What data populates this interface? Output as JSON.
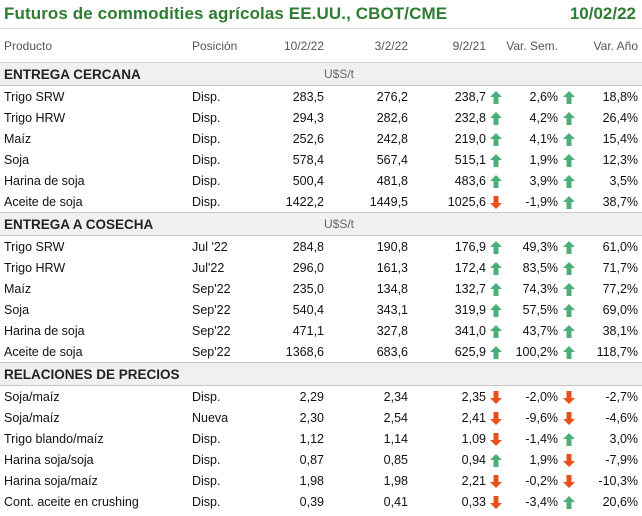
{
  "title": "Futuros de commodities agrícolas EE.UU., CBOT/CME",
  "date": "10/02/22",
  "colors": {
    "accent": "#2e7d32",
    "up": "#4caf7a",
    "down": "#e8511d"
  },
  "headers": [
    "Producto",
    "Posición",
    "10/2/22",
    "3/2/22",
    "9/2/21",
    "Var. Sem.",
    "Var. Año"
  ],
  "sections": [
    {
      "title": "ENTREGA CERCANA",
      "unit": "U$S/t",
      "rows": [
        {
          "producto": "Trigo SRW",
          "posicion": "Disp.",
          "v1": "283,5",
          "v2": "276,2",
          "v3": "238,7",
          "sem_dir": "up",
          "sem": "2,6%",
          "anio_dir": "up",
          "anio": "18,8%"
        },
        {
          "producto": "Trigo HRW",
          "posicion": "Disp.",
          "v1": "294,3",
          "v2": "282,6",
          "v3": "232,8",
          "sem_dir": "up",
          "sem": "4,2%",
          "anio_dir": "up",
          "anio": "26,4%"
        },
        {
          "producto": "Maíz",
          "posicion": "Disp.",
          "v1": "252,6",
          "v2": "242,8",
          "v3": "219,0",
          "sem_dir": "up",
          "sem": "4,1%",
          "anio_dir": "up",
          "anio": "15,4%"
        },
        {
          "producto": "Soja",
          "posicion": "Disp.",
          "v1": "578,4",
          "v2": "567,4",
          "v3": "515,1",
          "sem_dir": "up",
          "sem": "1,9%",
          "anio_dir": "up",
          "anio": "12,3%"
        },
        {
          "producto": "Harina de soja",
          "posicion": "Disp.",
          "v1": "500,4",
          "v2": "481,8",
          "v3": "483,6",
          "sem_dir": "up",
          "sem": "3,9%",
          "anio_dir": "up",
          "anio": "3,5%"
        },
        {
          "producto": "Aceite de soja",
          "posicion": "Disp.",
          "v1": "1422,2",
          "v2": "1449,5",
          "v3": "1025,6",
          "sem_dir": "down",
          "sem": "-1,9%",
          "anio_dir": "up",
          "anio": "38,7%"
        }
      ]
    },
    {
      "title": "ENTREGA A COSECHA",
      "unit": "U$S/t",
      "rows": [
        {
          "producto": "Trigo SRW",
          "posicion": "Jul '22",
          "v1": "284,8",
          "v2": "190,8",
          "v3": "176,9",
          "sem_dir": "up",
          "sem": "49,3%",
          "anio_dir": "up",
          "anio": "61,0%"
        },
        {
          "producto": "Trigo HRW",
          "posicion": "Jul'22",
          "v1": "296,0",
          "v2": "161,3",
          "v3": "172,4",
          "sem_dir": "up",
          "sem": "83,5%",
          "anio_dir": "up",
          "anio": "71,7%"
        },
        {
          "producto": "Maíz",
          "posicion": "Sep'22",
          "v1": "235,0",
          "v2": "134,8",
          "v3": "132,7",
          "sem_dir": "up",
          "sem": "74,3%",
          "anio_dir": "up",
          "anio": "77,2%"
        },
        {
          "producto": "Soja",
          "posicion": "Sep'22",
          "v1": "540,4",
          "v2": "343,1",
          "v3": "319,9",
          "sem_dir": "up",
          "sem": "57,5%",
          "anio_dir": "up",
          "anio": "69,0%"
        },
        {
          "producto": "Harina de soja",
          "posicion": "Sep'22",
          "v1": "471,1",
          "v2": "327,8",
          "v3": "341,0",
          "sem_dir": "up",
          "sem": "43,7%",
          "anio_dir": "up",
          "anio": "38,1%"
        },
        {
          "producto": "Aceite de soja",
          "posicion": "Sep'22",
          "v1": "1368,6",
          "v2": "683,6",
          "v3": "625,9",
          "sem_dir": "up",
          "sem": "100,2%",
          "anio_dir": "up",
          "anio": "118,7%"
        }
      ]
    },
    {
      "title": "RELACIONES DE PRECIOS",
      "unit": "",
      "rows": [
        {
          "producto": "Soja/maíz",
          "posicion": "Disp.",
          "v1": "2,29",
          "v2": "2,34",
          "v3": "2,35",
          "sem_dir": "down",
          "sem": "-2,0%",
          "anio_dir": "down",
          "anio": "-2,7%"
        },
        {
          "producto": "Soja/maíz",
          "posicion": "Nueva",
          "v1": "2,30",
          "v2": "2,54",
          "v3": "2,41",
          "sem_dir": "down",
          "sem": "-9,6%",
          "anio_dir": "down",
          "anio": "-4,6%"
        },
        {
          "producto": "Trigo blando/maíz",
          "posicion": "Disp.",
          "v1": "1,12",
          "v2": "1,14",
          "v3": "1,09",
          "sem_dir": "down",
          "sem": "-1,4%",
          "anio_dir": "up",
          "anio": "3,0%"
        },
        {
          "producto": "Harina soja/soja",
          "posicion": "Disp.",
          "v1": "0,87",
          "v2": "0,85",
          "v3": "0,94",
          "sem_dir": "up",
          "sem": "1,9%",
          "anio_dir": "down",
          "anio": "-7,9%"
        },
        {
          "producto": "Harina soja/maíz",
          "posicion": "Disp.",
          "v1": "1,98",
          "v2": "1,98",
          "v3": "2,21",
          "sem_dir": "down",
          "sem": "-0,2%",
          "anio_dir": "down",
          "anio": "-10,3%"
        },
        {
          "producto": "Cont. aceite en crushing",
          "posicion": "Disp.",
          "v1": "0,39",
          "v2": "0,41",
          "v3": "0,33",
          "sem_dir": "down",
          "sem": "-3,4%",
          "anio_dir": "up",
          "anio": "20,6%"
        }
      ]
    }
  ]
}
